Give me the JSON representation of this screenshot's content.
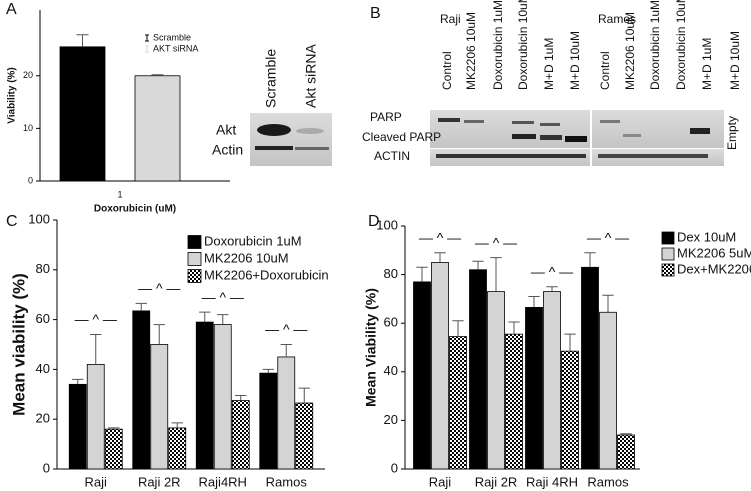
{
  "chart_data": [
    {
      "type": "bar",
      "ylabel": "Viability (%)",
      "xlabel": "Doxorubicin (uM)",
      "categories": [
        "1"
      ],
      "series": [
        {
          "name": "Scramble",
          "color": "#000000",
          "values": [
            25.5
          ],
          "errors": [
            2.3
          ]
        },
        {
          "name": "AKT siRNA",
          "color": "#d9d9d9",
          "values": [
            20.0
          ],
          "errors": [
            0.2
          ]
        }
      ],
      "ylim": [
        0,
        32.5
      ],
      "yticks": [
        0,
        10,
        20
      ],
      "legend": "upper right",
      "grid": false
    },
    {
      "type": "bar",
      "ylabel": "Mean viability (%)",
      "categories": [
        "Raji",
        "Raji 2R",
        "Raji4RH",
        "Ramos"
      ],
      "series": [
        {
          "name": "Doxorubicin 1uM",
          "color": "#000000",
          "values": [
            34,
            63.5,
            59,
            38.5
          ],
          "errors": [
            2,
            3,
            4,
            1.5
          ]
        },
        {
          "name": "MK2206 10uM",
          "color": "#d4d4d4",
          "values": [
            42,
            50,
            58,
            45
          ],
          "errors": [
            12,
            8,
            4,
            5
          ]
        },
        {
          "name": "MK2206+Doxorubicin",
          "color": "#000000",
          "pattern": "checker",
          "values": [
            16,
            16.5,
            27.5,
            26.5
          ],
          "errors": [
            0.5,
            2,
            2,
            6
          ]
        }
      ],
      "annotations": [
        "— ^ —",
        "— ^ —",
        "— ^ —",
        "— ^ —"
      ],
      "ylim": [
        0,
        100
      ],
      "yticks": [
        0,
        20,
        40,
        60,
        80,
        100
      ],
      "legend": "upper right",
      "grid": false
    },
    {
      "type": "bar",
      "ylabel": "Mean Viability (%)",
      "categories": [
        "Raji",
        "Raji 2R",
        "Raji 4RH",
        "Ramos"
      ],
      "series": [
        {
          "name": "Dex 10uM",
          "color": "#000000",
          "values": [
            77,
            82,
            66.5,
            83
          ],
          "errors": [
            6,
            3.5,
            4.5,
            6
          ]
        },
        {
          "name": "MK2206 5uM",
          "color": "#d4d4d4",
          "values": [
            85,
            73,
            73,
            64.5
          ],
          "errors": [
            4,
            14,
            2,
            7
          ]
        },
        {
          "name": "Dex+MK2206",
          "color": "#000000",
          "pattern": "checker",
          "values": [
            54.5,
            55.5,
            48.5,
            14
          ],
          "errors": [
            6.5,
            5,
            7,
            0.5
          ]
        }
      ],
      "annotations": [
        "— ^ —",
        "— ^ —",
        "— ^ —",
        "— ^ —"
      ],
      "ylim": [
        0,
        100
      ],
      "yticks": [
        0,
        20,
        40,
        60,
        80,
        100
      ],
      "legend": "outside right",
      "grid": false
    }
  ],
  "figure": {
    "panel_labels": [
      "A",
      "B",
      "C",
      "D"
    ],
    "blot_a": {
      "lanes": [
        "Scramble",
        "Akt siRNA"
      ],
      "rows": [
        "Akt",
        "Actin"
      ]
    },
    "blot_b": {
      "groups": [
        "Raji",
        "Ramos"
      ],
      "lanes": [
        "Control",
        "MK2206 10uM",
        "Doxorubicin 1uM",
        "Doxorubicin 10uM",
        "M+D 1uM",
        "M+D 10uM"
      ],
      "rows": [
        "PARP",
        "Cleaved PARP",
        "ACTIN"
      ],
      "empty": "Empty"
    }
  }
}
